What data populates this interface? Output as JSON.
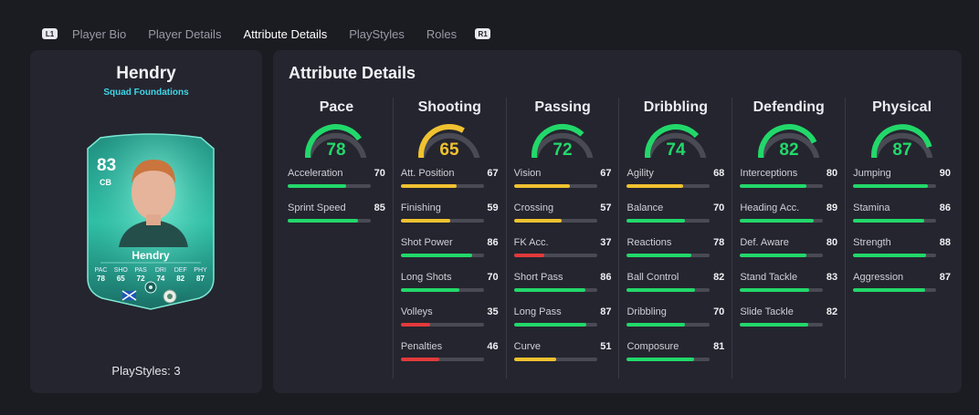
{
  "nav": {
    "left_hint": "L1",
    "right_hint": "R1",
    "tabs": [
      {
        "label": "Player Bio",
        "active": false
      },
      {
        "label": "Player Details",
        "active": false
      },
      {
        "label": "Attribute Details",
        "active": true
      },
      {
        "label": "PlayStyles",
        "active": false
      },
      {
        "label": "Roles",
        "active": false
      }
    ]
  },
  "player": {
    "name": "Hendry",
    "subtitle": "Squad Foundations",
    "playstyles_label": "PlayStyles: 3",
    "card": {
      "overall": "83",
      "position": "CB",
      "name": "Hendry",
      "stats": [
        {
          "label": "PAC",
          "value": "78"
        },
        {
          "label": "SHO",
          "value": "65"
        },
        {
          "label": "PAS",
          "value": "72"
        },
        {
          "label": "DRI",
          "value": "74"
        },
        {
          "label": "DEF",
          "value": "82"
        },
        {
          "label": "PHY",
          "value": "87"
        }
      ]
    }
  },
  "attributes": {
    "title": "Attribute Details",
    "colors": {
      "high": "#22d86a",
      "mid": "#f0c230",
      "low": "#e23a3a",
      "track": "#4a4a55"
    },
    "categories": [
      {
        "name": "Pace",
        "value": 78,
        "items": [
          {
            "label": "Acceleration",
            "value": 70
          },
          {
            "label": "Sprint Speed",
            "value": 85
          }
        ]
      },
      {
        "name": "Shooting",
        "value": 65,
        "items": [
          {
            "label": "Att. Position",
            "value": 67
          },
          {
            "label": "Finishing",
            "value": 59
          },
          {
            "label": "Shot Power",
            "value": 86
          },
          {
            "label": "Long Shots",
            "value": 70
          },
          {
            "label": "Volleys",
            "value": 35
          },
          {
            "label": "Penalties",
            "value": 46
          }
        ]
      },
      {
        "name": "Passing",
        "value": 72,
        "items": [
          {
            "label": "Vision",
            "value": 67
          },
          {
            "label": "Crossing",
            "value": 57
          },
          {
            "label": "FK Acc.",
            "value": 37
          },
          {
            "label": "Short Pass",
            "value": 86
          },
          {
            "label": "Long Pass",
            "value": 87
          },
          {
            "label": "Curve",
            "value": 51
          }
        ]
      },
      {
        "name": "Dribbling",
        "value": 74,
        "items": [
          {
            "label": "Agility",
            "value": 68
          },
          {
            "label": "Balance",
            "value": 70
          },
          {
            "label": "Reactions",
            "value": 78
          },
          {
            "label": "Ball Control",
            "value": 82
          },
          {
            "label": "Dribbling",
            "value": 70
          },
          {
            "label": "Composure",
            "value": 81
          }
        ]
      },
      {
        "name": "Defending",
        "value": 82,
        "items": [
          {
            "label": "Interceptions",
            "value": 80
          },
          {
            "label": "Heading Acc.",
            "value": 89
          },
          {
            "label": "Def. Aware",
            "value": 80
          },
          {
            "label": "Stand Tackle",
            "value": 83
          },
          {
            "label": "Slide Tackle",
            "value": 82
          }
        ]
      },
      {
        "name": "Physical",
        "value": 87,
        "items": [
          {
            "label": "Jumping",
            "value": 90
          },
          {
            "label": "Stamina",
            "value": 86
          },
          {
            "label": "Strength",
            "value": 88
          },
          {
            "label": "Aggression",
            "value": 87
          }
        ]
      }
    ]
  }
}
